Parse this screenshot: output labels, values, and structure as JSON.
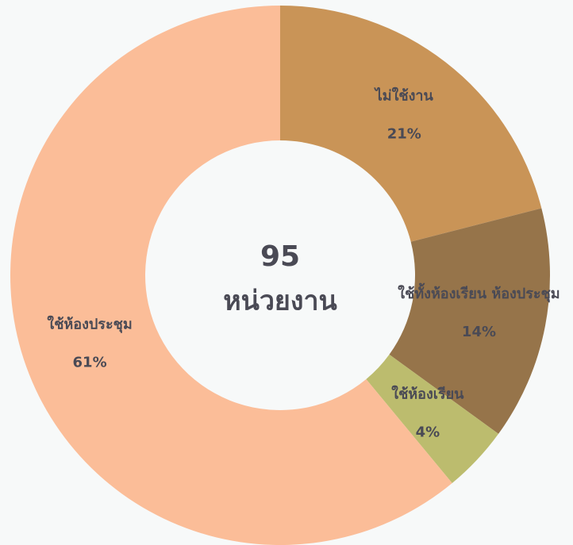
{
  "chart_data": {
    "type": "donut",
    "center_value": 95,
    "center_label": "หน่วยงาน",
    "categories": [
      "ไม่ใช้งาน",
      "ใช้ทั้งห้องเรียน ห้องประชุม",
      "ใช้ห้องเรียน",
      "ใช้ห้องประชุม"
    ],
    "values": [
      21,
      14,
      4,
      61
    ],
    "value_labels": [
      "21%",
      "14%",
      "4%",
      "61%"
    ],
    "colors": [
      "#c99457",
      "#96744a",
      "#bcbc6e",
      "#fbbd98"
    ]
  }
}
